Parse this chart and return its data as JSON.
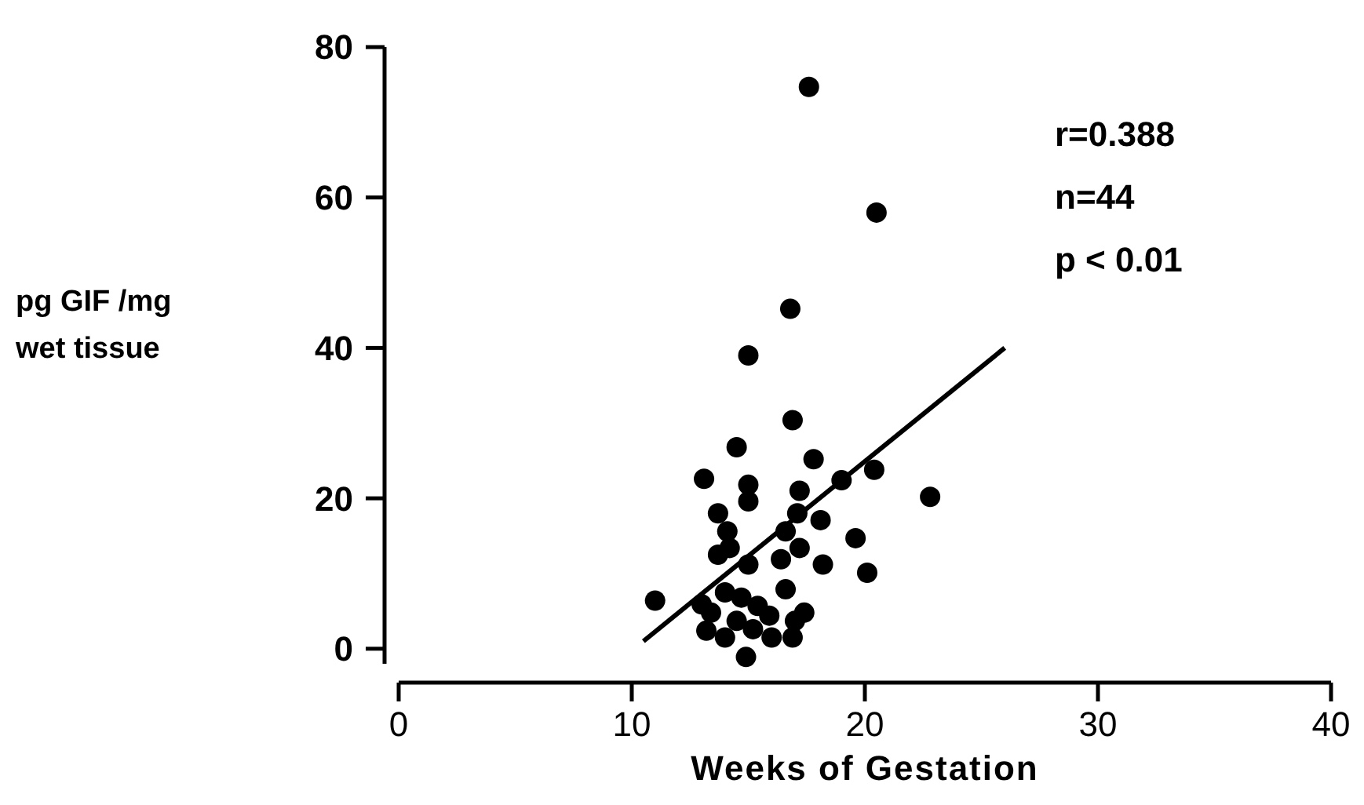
{
  "chart_data": {
    "type": "scatter",
    "xlabel": "Weeks of Gestation",
    "ylabel": "pg GIF /mg\nwet tissue",
    "xlim": [
      0,
      40
    ],
    "ylim": [
      -2,
      80
    ],
    "xticks": [
      0,
      10,
      20,
      30,
      40
    ],
    "yticks": [
      0,
      20,
      40,
      60,
      80
    ],
    "grid": false,
    "marker": "circle",
    "annotations": [
      "r=0.388",
      "n=44",
      "p < 0.01"
    ],
    "series": [
      {
        "color": "#000000",
        "x": [
          17.6,
          20.5,
          16.8,
          15.0,
          16.9,
          14.5,
          17.8,
          13.1,
          15.0,
          15.0,
          20.4,
          19.0,
          22.8,
          17.2,
          13.7,
          18.1,
          17.1,
          14.1,
          19.6,
          16.6,
          13.7,
          16.4,
          17.2,
          18.2,
          20.1,
          15.0,
          11.0,
          13.0,
          14.0,
          14.7,
          15.4,
          16.6,
          17.4,
          13.2,
          14.0,
          14.5,
          15.2,
          16.0,
          16.9,
          17.0,
          14.9,
          15.9,
          13.4,
          14.2
        ],
        "values": [
          74.7,
          58,
          45.2,
          39.0,
          30.4,
          26.8,
          25.2,
          22.6,
          21.8,
          19.6,
          23.8,
          22.4,
          20.2,
          21.0,
          18.0,
          17.1,
          18.0,
          15.6,
          14.7,
          15.6,
          12.5,
          11.9,
          13.4,
          11.2,
          10.1,
          11.2,
          6.4,
          5.9,
          7.5,
          6.8,
          5.7,
          7.9,
          4.8,
          2.4,
          1.5,
          3.7,
          2.6,
          1.5,
          1.5,
          3.7,
          -1.1,
          4.4,
          4.8,
          13.4
        ]
      },
      {
        "type": "line",
        "color": "#000000",
        "marker": "none",
        "line_style": "solid",
        "x": [
          10.5,
          26
        ],
        "values": [
          1,
          40
        ]
      }
    ]
  }
}
